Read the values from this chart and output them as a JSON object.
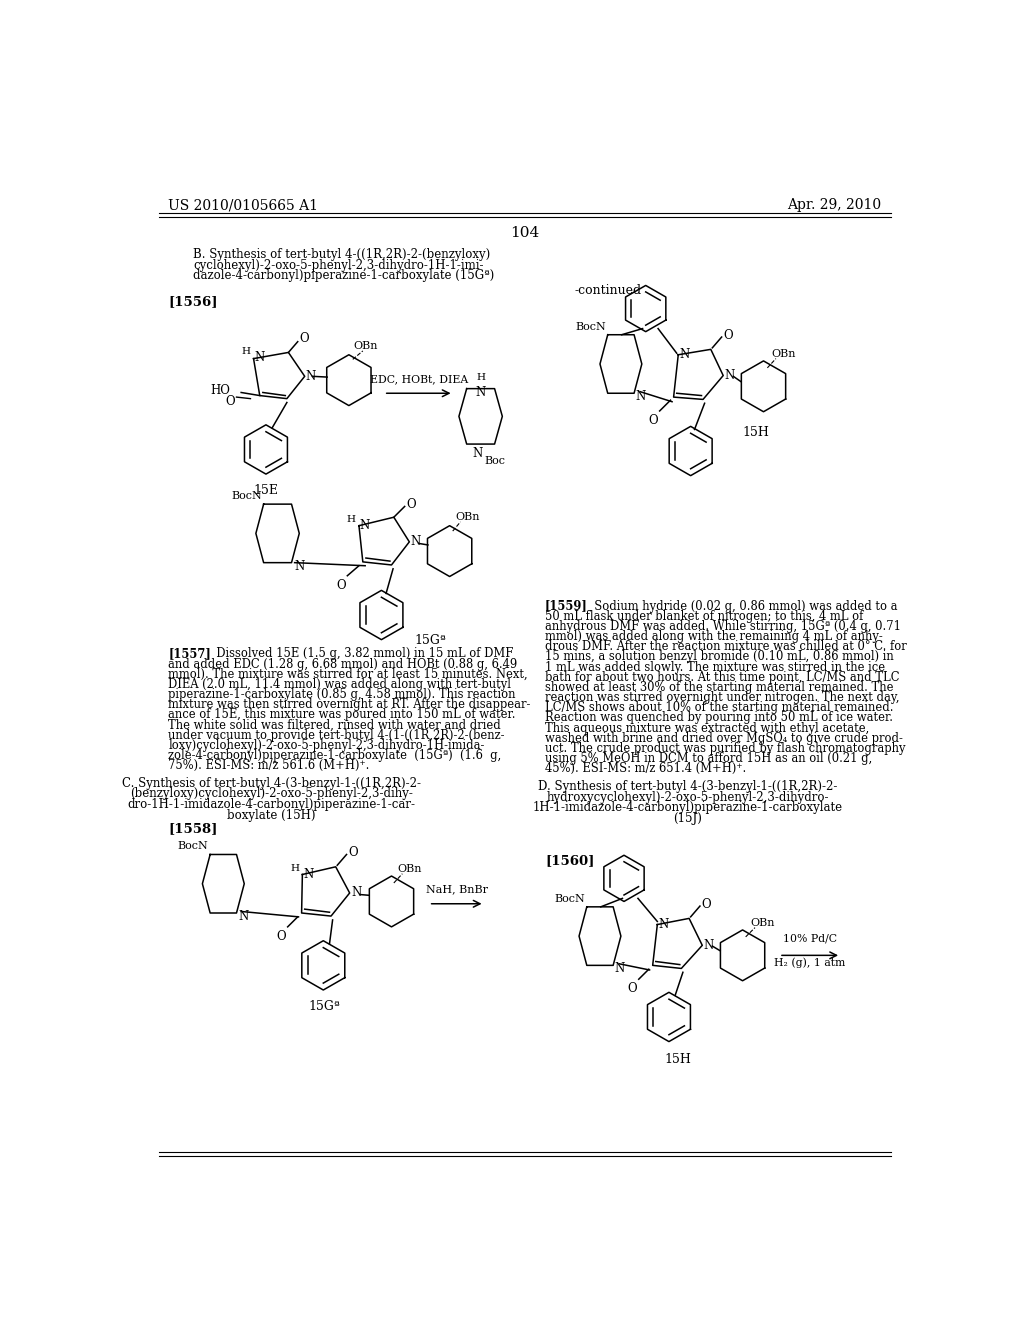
{
  "page_header_left": "US 2010/0105665 A1",
  "page_header_right": "Apr. 29, 2010",
  "page_number": "104",
  "background_color": "#ffffff",
  "text_color": "#000000",
  "section_B_title_line1": "B. Synthesis of tert-butyl 4-((1R,2R)-2-(benzyloxy)",
  "section_B_title_line2": "cyclohexyl)-2-oxo-5-phenyl-2,3-dihydro-1H-1-imi-",
  "section_B_title_line3": "dazole-4-carbonyl)piperazine-1-carboxylate (15Gª)",
  "continued_label": "-continued",
  "label_1556": "[1556]",
  "label_15E": "15E",
  "label_15Ga_mid": "15Gª",
  "label_15H_top": "15H",
  "label_1557": "[1557]",
  "label_1558": "[1558]",
  "label_15Ga_bot": "15Gª",
  "section_C_line1": "C. Synthesis of tert-butyl 4-(3-benzyl-1-((1R,2R)-2-",
  "section_C_line2": "(benzyloxy)cyclohexyl)-2-oxo-5-phenyl-2,3-dihy-",
  "section_C_line3": "dro-1H-1-imidazole-4-carbonyl)piperazine-1-car-",
  "section_C_line4": "boxylate (15H)",
  "label_1559": "[1559]",
  "section_D_line1": "D. Synthesis of tert-butyl 4-(3-benzyl-1-((1R,2R)-2-",
  "section_D_line2": "hydroxycyclohexyl)-2-oxo-5-phenyl-2,3-dihydro-",
  "section_D_line3": "1H-1-imidazole-4-carbonyl)piperazine-1-carboxylate",
  "section_D_line4": "(15J)",
  "label_1560": "[1560]",
  "label_15H_bot": "15H",
  "para_1557": [
    "[1557]   Dissolved 15E (1.5 g, 3.82 mmol) in 15 mL of DMF",
    "and added EDC (1.28 g, 6.68 mmol) and HOBt (0.88 g, 6.49",
    "mmol). The mixture was stirred for at least 15 minutes. Next,",
    "DIEA (2.0 mL, 11.4 mmol) was added along with tert-butyl",
    "piperazine-1-carboxylate (0.85 g, 4.58 mmol). This reaction",
    "mixture was then stirred overnight at RT. After the disappear-",
    "ance of 15E, this mixture was poured into 150 mL of water.",
    "The white solid was filtered, rinsed with water and dried",
    "under vacuum to provide tert-butyl 4-(1-((1R,2R)-2-(benz-",
    "loxy)cyclohexyl)-2-oxo-5-phenyl-2,3-dihydro-1H-imida-",
    "zole-4-carbonyl)piperazine-1-carboxylate  (15Gª)  (1.6  g,",
    "75%). ESI-MS: m/z 561.6 (M+H)⁺."
  ],
  "para_1559": [
    "[1559]   Sodium hydride (0.02 g, 0.86 mmol) was added to a",
    "50 mL flask under blanket of nitrogen; to this, 4 mL of",
    "anhydrous DMF was added. While stirring, 15Gª (0.4 g, 0.71",
    "mmol) was added along with the remaining 4 mL of anhy-",
    "drous DMF. After the reaction mixture was chilled at 0° C. for",
    "15 mins, a solution benzyl bromide (0.10 mL, 0.86 mmol) in",
    "1 mL was added slowly. The mixture was stirred in the ice",
    "bath for about two hours. At this time point, LC/MS and TLC",
    "showed at least 30% of the starting material remained. The",
    "reaction was stirred overnight under nitrogen. The next day,",
    "LC/MS shows about 10% of the starting material remained.",
    "Reaction was quenched by pouring into 50 mL of ice water.",
    "This aqueous mixture was extracted with ethyl acetate,",
    "washed with brine and dried over MgSO₄ to give crude prod-",
    "uct. The crude product was purified by flash chromatography",
    "using 5% MeOH in DCM to afford 15H as an oil (0.21 g,",
    "45%). ESI-MS: m/z 651.4 (M+H)⁺."
  ]
}
